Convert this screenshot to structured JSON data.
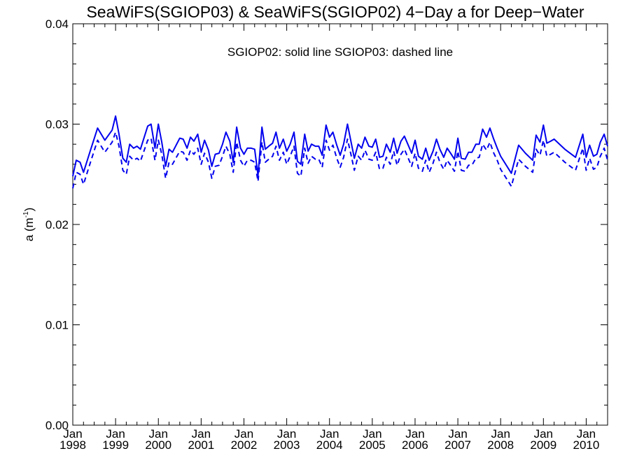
{
  "chart_data": {
    "type": "line",
    "title": "SeaWiFS(SGIOP03) & SeaWiFS(SGIOP02) 4−Day a for Deep−Water",
    "annotation": "SGIOP02: solid line   SGIOP03: dashed line",
    "ylabel_main": "a (m",
    "ylabel_sup": "-1",
    "ylabel_close": ")",
    "ylim": [
      0.0,
      0.04
    ],
    "yticks": [
      "0.00",
      "0.01",
      "0.02",
      "0.03",
      "0.04"
    ],
    "xlim": [
      1998.0,
      2010.5
    ],
    "xticks": [
      {
        "month": "Jan",
        "year": "1998"
      },
      {
        "month": "Jan",
        "year": "1999"
      },
      {
        "month": "Jan",
        "year": "2000"
      },
      {
        "month": "Jan",
        "year": "2001"
      },
      {
        "month": "Jan",
        "year": "2002"
      },
      {
        "month": "Jan",
        "year": "2003"
      },
      {
        "month": "Jan",
        "year": "2004"
      },
      {
        "month": "Jan",
        "year": "2005"
      },
      {
        "month": "Jan",
        "year": "2006"
      },
      {
        "month": "Jan",
        "year": "2007"
      },
      {
        "month": "Jan",
        "year": "2008"
      },
      {
        "month": "Jan",
        "year": "2009"
      },
      {
        "month": "Jan",
        "year": "2010"
      }
    ],
    "x": [
      1998.0,
      1998.08,
      1998.17,
      1998.25,
      1998.42,
      1998.58,
      1998.75,
      1998.92,
      1999.0,
      1999.08,
      1999.17,
      1999.25,
      1999.33,
      1999.42,
      1999.5,
      1999.58,
      1999.75,
      1999.83,
      1999.92,
      2000.0,
      2000.08,
      2000.17,
      2000.25,
      2000.33,
      2000.5,
      2000.58,
      2000.67,
      2000.75,
      2000.83,
      2000.92,
      2001.0,
      2001.08,
      2001.17,
      2001.25,
      2001.33,
      2001.42,
      2001.5,
      2001.58,
      2001.67,
      2001.75,
      2001.83,
      2001.92,
      2002.0,
      2002.08,
      2002.17,
      2002.25,
      2002.33,
      2002.42,
      2002.5,
      2002.58,
      2002.67,
      2002.75,
      2002.83,
      2002.92,
      2003.0,
      2003.08,
      2003.17,
      2003.25,
      2003.33,
      2003.42,
      2003.5,
      2003.58,
      2003.67,
      2003.75,
      2003.83,
      2003.92,
      2004.0,
      2004.08,
      2004.17,
      2004.25,
      2004.33,
      2004.42,
      2004.5,
      2004.58,
      2004.67,
      2004.75,
      2004.83,
      2004.92,
      2005.0,
      2005.08,
      2005.17,
      2005.25,
      2005.33,
      2005.42,
      2005.5,
      2005.58,
      2005.67,
      2005.75,
      2005.83,
      2005.92,
      2006.0,
      2006.08,
      2006.17,
      2006.25,
      2006.33,
      2006.42,
      2006.5,
      2006.58,
      2006.67,
      2006.75,
      2006.83,
      2006.92,
      2007.0,
      2007.08,
      2007.17,
      2007.25,
      2007.33,
      2007.42,
      2007.5,
      2007.58,
      2007.67,
      2007.75,
      2007.83,
      2007.92,
      2008.0,
      2008.25,
      2008.42,
      2008.58,
      2008.75,
      2008.83,
      2008.92,
      2009.0,
      2009.08,
      2009.17,
      2009.25,
      2009.5,
      2009.75,
      2009.92,
      2010.0,
      2010.08,
      2010.17,
      2010.25,
      2010.33,
      2010.42,
      2010.5
    ],
    "series": [
      {
        "name": "SGIOP02",
        "style": "solid",
        "color": "#0000ee",
        "values": [
          0.0248,
          0.0264,
          0.0262,
          0.0252,
          0.0275,
          0.0296,
          0.0284,
          0.0294,
          0.0308,
          0.029,
          0.0266,
          0.0262,
          0.028,
          0.0276,
          0.0278,
          0.0275,
          0.0298,
          0.03,
          0.0276,
          0.03,
          0.0282,
          0.0258,
          0.0275,
          0.0272,
          0.0286,
          0.0285,
          0.0276,
          0.0287,
          0.0283,
          0.029,
          0.0272,
          0.0284,
          0.0274,
          0.0258,
          0.027,
          0.0271,
          0.028,
          0.0292,
          0.0283,
          0.0262,
          0.0297,
          0.0276,
          0.027,
          0.0276,
          0.0276,
          0.0275,
          0.0249,
          0.0297,
          0.0275,
          0.0278,
          0.0281,
          0.0292,
          0.0276,
          0.0285,
          0.0273,
          0.028,
          0.0292,
          0.0263,
          0.026,
          0.029,
          0.0273,
          0.028,
          0.0278,
          0.0278,
          0.0269,
          0.0299,
          0.0287,
          0.0292,
          0.0279,
          0.0269,
          0.028,
          0.03,
          0.0283,
          0.0266,
          0.028,
          0.0276,
          0.0287,
          0.0278,
          0.0277,
          0.0285,
          0.0267,
          0.0268,
          0.028,
          0.0272,
          0.0286,
          0.0271,
          0.0283,
          0.0288,
          0.028,
          0.0271,
          0.0284,
          0.0268,
          0.0265,
          0.0276,
          0.0264,
          0.0273,
          0.0285,
          0.0275,
          0.0267,
          0.0276,
          0.0271,
          0.0265,
          0.0286,
          0.0266,
          0.0265,
          0.0272,
          0.0272,
          0.028,
          0.028,
          0.0295,
          0.0287,
          0.0296,
          0.0286,
          0.0276,
          0.0268,
          0.0251,
          0.0279,
          0.0271,
          0.0264,
          0.0289,
          0.0282,
          0.0299,
          0.0281,
          0.0283,
          0.0285,
          0.0275,
          0.0267,
          0.029,
          0.0267,
          0.0279,
          0.0268,
          0.027,
          0.0282,
          0.029,
          0.0278
        ]
      },
      {
        "name": "SGIOP03",
        "style": "dashed",
        "color": "#0000ee",
        "values": [
          0.0236,
          0.0252,
          0.025,
          0.024,
          0.0263,
          0.0284,
          0.0272,
          0.0282,
          0.0292,
          0.0278,
          0.0254,
          0.025,
          0.0268,
          0.0264,
          0.0266,
          0.0263,
          0.0284,
          0.0286,
          0.0264,
          0.0284,
          0.027,
          0.0246,
          0.0262,
          0.026,
          0.0273,
          0.0272,
          0.0264,
          0.0274,
          0.027,
          0.0276,
          0.026,
          0.0271,
          0.0262,
          0.0246,
          0.0258,
          0.0259,
          0.0268,
          0.0278,
          0.027,
          0.0252,
          0.0282,
          0.0264,
          0.0258,
          0.0264,
          0.0264,
          0.0262,
          0.0243,
          0.0282,
          0.0262,
          0.0265,
          0.0268,
          0.0278,
          0.0264,
          0.0272,
          0.026,
          0.0268,
          0.0278,
          0.0251,
          0.0248,
          0.0276,
          0.0261,
          0.0268,
          0.0265,
          0.0265,
          0.0257,
          0.0284,
          0.0274,
          0.0279,
          0.0266,
          0.0257,
          0.0267,
          0.0285,
          0.027,
          0.0254,
          0.0268,
          0.0264,
          0.0274,
          0.0265,
          0.0264,
          0.0272,
          0.0255,
          0.0256,
          0.0267,
          0.026,
          0.0273,
          0.0259,
          0.027,
          0.0275,
          0.0267,
          0.0258,
          0.0271,
          0.0256,
          0.0253,
          0.0264,
          0.0252,
          0.0261,
          0.0272,
          0.0262,
          0.0255,
          0.0264,
          0.0259,
          0.0253,
          0.0273,
          0.0254,
          0.0253,
          0.0259,
          0.0259,
          0.0266,
          0.0267,
          0.028,
          0.0274,
          0.0282,
          0.0272,
          0.0264,
          0.0255,
          0.0238,
          0.0265,
          0.0258,
          0.0252,
          0.0275,
          0.0269,
          0.0284,
          0.0268,
          0.027,
          0.0272,
          0.0262,
          0.0254,
          0.0276,
          0.0254,
          0.0266,
          0.0255,
          0.0257,
          0.0268,
          0.0276,
          0.0264
        ]
      }
    ]
  }
}
